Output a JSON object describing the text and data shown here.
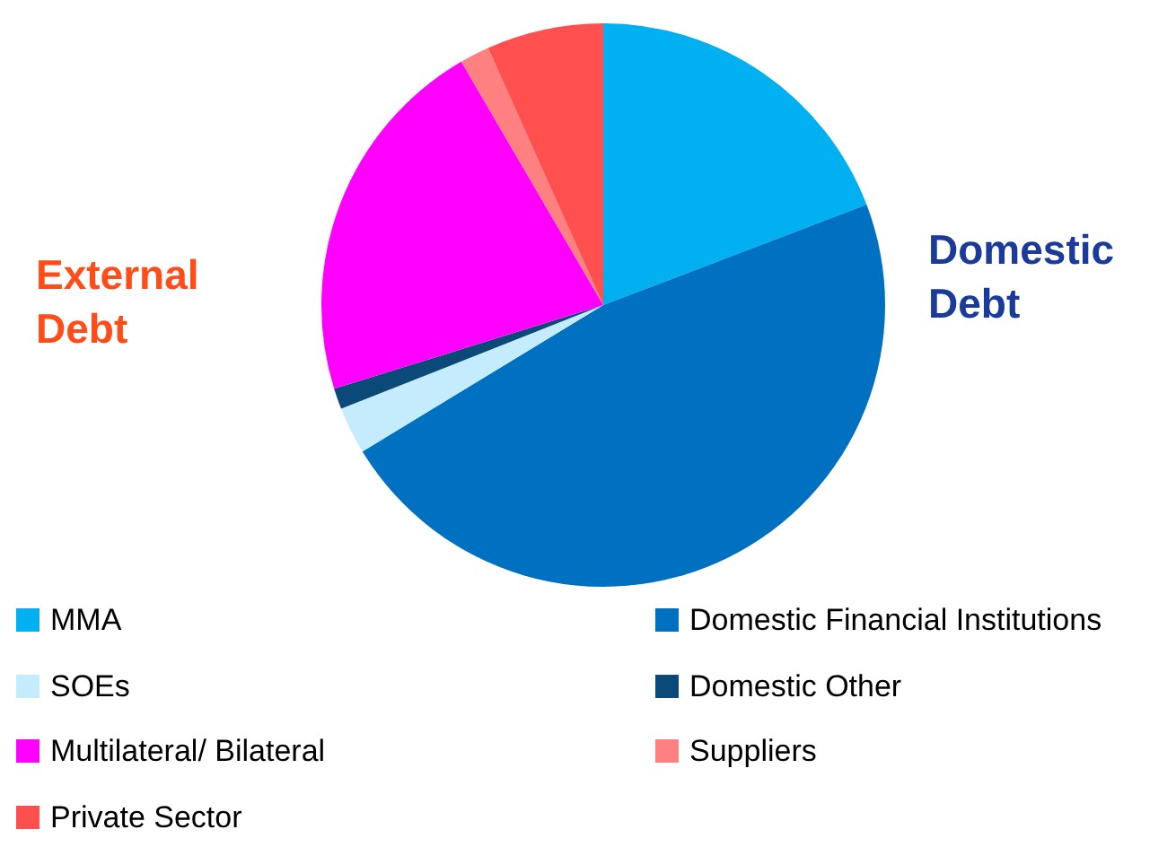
{
  "chart_data": {
    "type": "pie",
    "categories": [
      "MMA",
      "Domestic Financial Institutions",
      "SOEs",
      "Domestic Other",
      "Multilateral/ Bilateral",
      "Suppliers",
      "Private Sector"
    ],
    "values": [
      19.2,
      47.1,
      2.7,
      1.2,
      21.4,
      1.7,
      6.7
    ],
    "colors": [
      "#00b0f0",
      "#0070c0",
      "#c5ecfc",
      "#0b4a78",
      "#ff00ff",
      "#ff8080",
      "#ff5050"
    ],
    "annotations": [
      "Domestic Debt",
      "External Debt"
    ],
    "legend": "bottom"
  }
}
